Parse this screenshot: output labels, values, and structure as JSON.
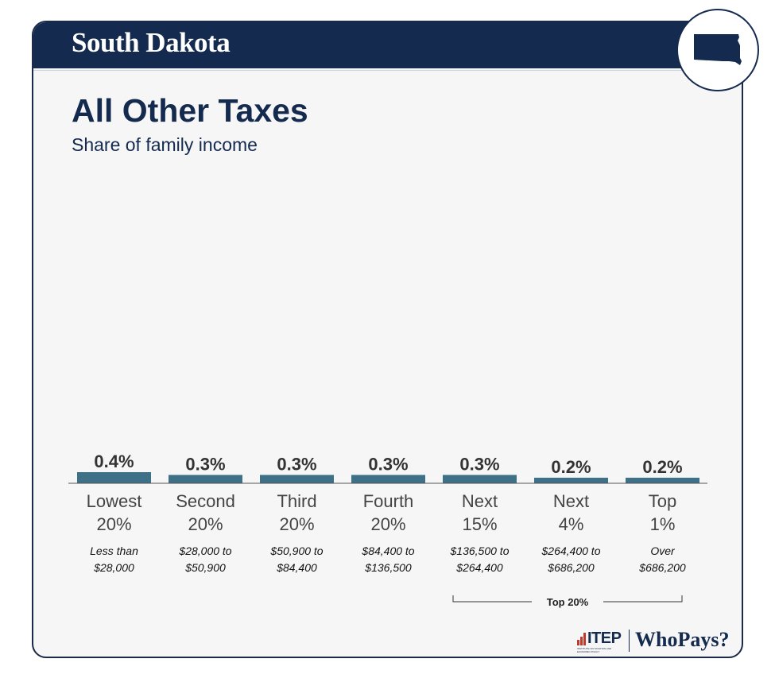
{
  "header": {
    "state": "South Dakota",
    "state_icon": "south-dakota-map-icon"
  },
  "chart_title": "All Other Taxes",
  "chart_subtitle": "Share of family income",
  "branding": {
    "org": "ITEP",
    "org_tagline": "INSTITUTE ON TAXATION AND ECONOMIC POLICY",
    "report": "WhoPays?"
  },
  "colors": {
    "navy": "#142a4e",
    "bar": "#3e7088",
    "label": "#333333",
    "accent_red": "#c0392b"
  },
  "chart_data": {
    "type": "bar",
    "title": "All Other Taxes",
    "subtitle": "Share of family income",
    "categories": [
      [
        "Lowest",
        "20%"
      ],
      [
        "Second",
        "20%"
      ],
      [
        "Third",
        "20%"
      ],
      [
        "Fourth",
        "20%"
      ],
      [
        "Next",
        "15%"
      ],
      [
        "Next",
        "4%"
      ],
      [
        "Top",
        "1%"
      ]
    ],
    "income_ranges": [
      [
        "Less than",
        "$28,000"
      ],
      [
        "$28,000 to",
        "$50,900"
      ],
      [
        "$50,900 to",
        "$84,400"
      ],
      [
        "$84,400 to",
        "$136,500"
      ],
      [
        "$136,500 to",
        "$264,400"
      ],
      [
        "$264,400 to",
        "$686,200"
      ],
      [
        "Over",
        "$686,200"
      ]
    ],
    "values": [
      0.4,
      0.3,
      0.3,
      0.3,
      0.3,
      0.2,
      0.2
    ],
    "value_labels": [
      "0.4%",
      "0.3%",
      "0.3%",
      "0.3%",
      "0.3%",
      "0.2%",
      "0.2%"
    ],
    "unit": "%",
    "bracket": {
      "label": "Top 20%",
      "from_index": 4,
      "to_index": 6
    },
    "xlabel": "",
    "ylabel": "",
    "grid": false,
    "legend": "none"
  }
}
